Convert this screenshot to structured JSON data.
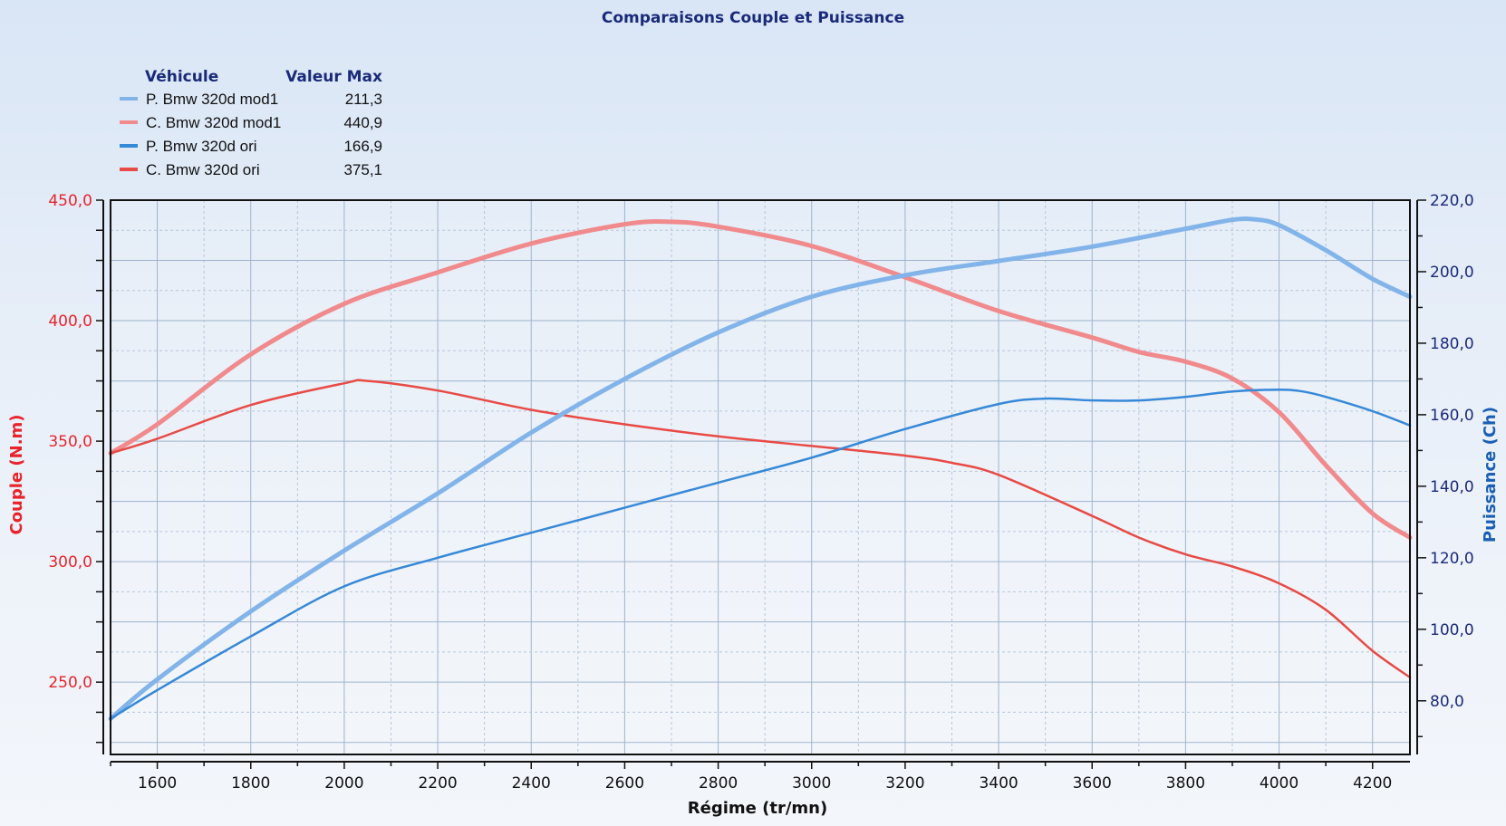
{
  "chart_data": {
    "type": "line",
    "title": "Comparaisons Couple et Puissance",
    "xlabel": "Régime (tr/mn)",
    "ylabel_left": "Couple (N.m)",
    "ylabel_right": "Puissance (Ch)",
    "xlim": [
      1500,
      4280
    ],
    "ylim_left": [
      220,
      450
    ],
    "ylim_right": [
      65,
      220
    ],
    "x_ticks": [
      "1600",
      "1800",
      "2000",
      "2200",
      "2400",
      "2600",
      "2800",
      "3000",
      "3200",
      "3400",
      "3600",
      "3800",
      "4000",
      "4200"
    ],
    "left_ticks": [
      "450,0",
      "400,0",
      "350,0",
      "300,0",
      "250,0"
    ],
    "right_ticks": [
      "220,0",
      "200,0",
      "180,0",
      "160,0",
      "140,0",
      "120,0",
      "100,0",
      "80,0"
    ],
    "grid": true,
    "legend": {
      "placement": "top-left",
      "header_vehicle": "Véhicule",
      "header_max": "Valeur Max"
    },
    "series": [
      {
        "name": "P. Bmw 320d mod1",
        "max": "211,3",
        "axis": "right",
        "color": "#82b4ea",
        "width": 5,
        "x": [
          1500,
          1600,
          1800,
          2000,
          2200,
          2400,
          2600,
          2800,
          3000,
          3200,
          3400,
          3600,
          3800,
          3900,
          3950,
          4000,
          4100,
          4200,
          4280
        ],
        "y": [
          75,
          86,
          105,
          122,
          138,
          155,
          170,
          183,
          193,
          199,
          203,
          207,
          212,
          214.5,
          214.6,
          213,
          206,
          198,
          193
        ]
      },
      {
        "name": "C. Bmw 320d mod1",
        "max": "440,9",
        "axis": "left",
        "color": "#f08a8c",
        "width": 5,
        "x": [
          1500,
          1600,
          1800,
          2000,
          2200,
          2400,
          2600,
          2700,
          2800,
          3000,
          3200,
          3400,
          3600,
          3700,
          3800,
          3900,
          4000,
          4100,
          4200,
          4280
        ],
        "y": [
          345,
          357,
          386,
          407,
          420,
          432,
          440,
          441,
          439,
          431,
          418,
          404,
          393,
          387,
          383,
          376,
          362,
          340,
          320,
          310
        ]
      },
      {
        "name": "P. Bmw 320d ori",
        "max": "166,9",
        "axis": "right",
        "color": "#3688d8",
        "width": 2.5,
        "x": [
          1500,
          1600,
          1800,
          2000,
          2200,
          2400,
          2600,
          2800,
          3000,
          3200,
          3400,
          3500,
          3600,
          3700,
          3800,
          3900,
          4000,
          4050,
          4100,
          4200,
          4280
        ],
        "y": [
          75,
          83,
          98,
          112,
          120,
          127,
          134,
          141,
          148,
          156,
          163,
          164.5,
          164,
          164,
          165,
          166.5,
          167,
          166.5,
          165,
          161,
          157
        ]
      },
      {
        "name": "C. Bmw 320d ori",
        "max": "375,1",
        "axis": "left",
        "color": "#e84a45",
        "width": 2.5,
        "x": [
          1500,
          1600,
          1800,
          2000,
          2050,
          2200,
          2400,
          2600,
          2800,
          3000,
          3200,
          3300,
          3400,
          3600,
          3700,
          3800,
          3900,
          4000,
          4100,
          4200,
          4280
        ],
        "y": [
          345,
          351,
          365,
          374,
          375,
          371,
          363,
          357,
          352,
          348,
          344,
          341,
          336,
          319,
          310,
          303,
          298,
          291,
          280,
          263,
          252
        ]
      }
    ]
  }
}
